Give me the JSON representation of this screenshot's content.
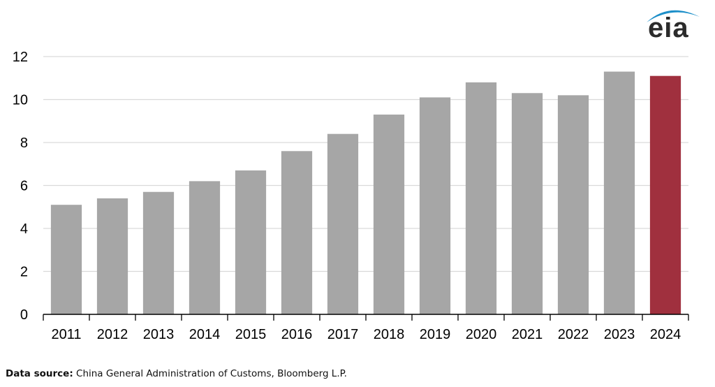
{
  "logo": {
    "text": "eia",
    "arc_color": "#1d8fc9",
    "text_color": "#2b2b2b"
  },
  "footer": {
    "label": "Data source:",
    "text": "China General Administration of Customs, Bloomberg L.P."
  },
  "colors": {
    "bar_default": "#a6a6a6",
    "bar_highlight": "#a0303e",
    "grid": "#d9d9d9",
    "axis": "#000000"
  },
  "chart_data": {
    "type": "bar",
    "categories": [
      "2011",
      "2012",
      "2013",
      "2014",
      "2015",
      "2016",
      "2017",
      "2018",
      "2019",
      "2020",
      "2021",
      "2022",
      "2023",
      "2024"
    ],
    "values": [
      5.1,
      5.4,
      5.7,
      6.2,
      6.7,
      7.6,
      8.4,
      9.3,
      10.1,
      10.8,
      10.3,
      10.2,
      11.3,
      11.1
    ],
    "highlight_index": 13,
    "title": "",
    "xlabel": "",
    "ylabel": "",
    "ylim": [
      0,
      12
    ],
    "yticks": [
      0,
      2,
      4,
      6,
      8,
      10,
      12
    ],
    "grid": true,
    "legend": "none"
  }
}
